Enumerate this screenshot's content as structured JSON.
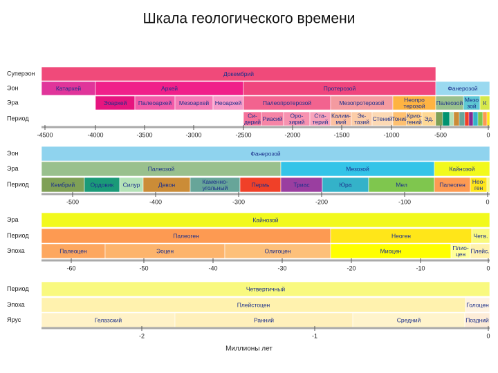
{
  "title": "Шкала геологического времени",
  "panels": [
    {
      "rows": [
        {
          "label": "Суперэон",
          "blocks": [
            "Докембрий"
          ]
        },
        {
          "label": "Эон",
          "blocks": [
            "Катархей",
            "Архей",
            "Протерозой",
            "Фанерозой"
          ]
        },
        {
          "label": "Эра",
          "blocks": [
            "Эоархей",
            "Палеоархей",
            "Мезоархей",
            "Неоархей",
            "Палеопротерозой",
            "Мезопротерозой",
            "Неопро\nтерозой",
            "Палеозой",
            "Мезо\nзой",
            "К"
          ]
        },
        {
          "label": "Период",
          "blocks": [
            "Си-\nдерий",
            "Риасий",
            "Оро-\nзирий",
            "Ста-\nтерий",
            "Калим-\nмий",
            "Эк-\nтазий",
            "Стений",
            "Тоний",
            "Крио-\nгений",
            "Эд."
          ]
        }
      ],
      "ticks": [
        "-4500",
        "-4000",
        "-3500",
        "-3000",
        "-2500",
        "-2000",
        "-1500",
        "-1000",
        "-500",
        "0"
      ]
    },
    {
      "rows": [
        {
          "label": "Эон",
          "blocks": [
            "Фанерозой"
          ]
        },
        {
          "label": "Эра",
          "blocks": [
            "Палеозой",
            "Мезозой",
            "Кайнозой"
          ]
        },
        {
          "label": "Период",
          "blocks": [
            "Кембрий",
            "Ордовик",
            "Силур",
            "Девон",
            "Каменно-\nугольный",
            "Пермь",
            "Триас",
            "Юра",
            "Мел",
            "Палеоген",
            "Нео-\nген"
          ]
        }
      ],
      "ticks": [
        "-500",
        "-400",
        "-300",
        "-200",
        "-100",
        "0"
      ]
    },
    {
      "rows": [
        {
          "label": "Эра",
          "blocks": [
            "Кайнозой"
          ]
        },
        {
          "label": "Период",
          "blocks": [
            "Палеоген",
            "Неоген",
            "Четв."
          ]
        },
        {
          "label": "Эпоха",
          "blocks": [
            "Палеоцен",
            "Эоцен",
            "Олигоцен",
            "Миоцен",
            "Плио-\nцен",
            "Плейс."
          ]
        }
      ],
      "ticks": [
        "-60",
        "-50",
        "-40",
        "-30",
        "-20",
        "-10",
        "0"
      ]
    },
    {
      "rows": [
        {
          "label": "Период",
          "blocks": [
            "Четвертичный"
          ]
        },
        {
          "label": "Эпоха",
          "blocks": [
            "Плейстоцен",
            "Голоцен"
          ]
        },
        {
          "label": "Ярус",
          "blocks": [
            "Гелазский",
            "Ранний",
            "Средний",
            "Поздний"
          ]
        }
      ],
      "ticks": [
        "-2",
        "-1",
        "0"
      ]
    }
  ],
  "footer": "Миллионы лет"
}
